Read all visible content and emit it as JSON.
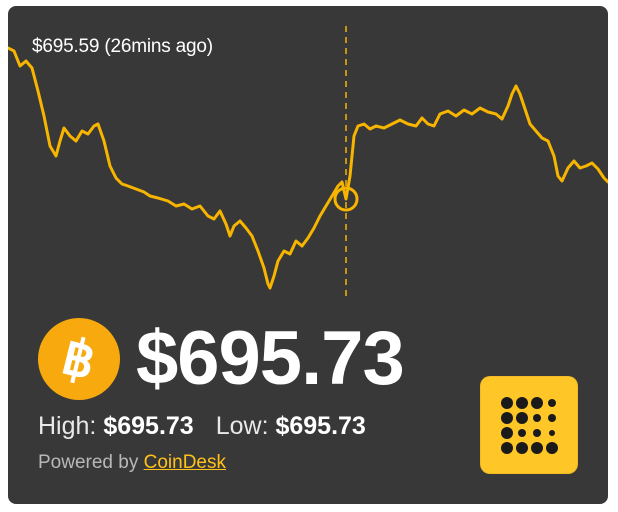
{
  "widget": {
    "hover_label": "$695.59 (26mins ago)",
    "price": "$695.73",
    "high_label": "High:",
    "high_value": "$695.73",
    "low_label": "Low:",
    "low_value": "$695.73",
    "powered_by": "Powered by",
    "provider_link": "CoinDesk",
    "coin_symbol": "฿",
    "colors": {
      "background": "#383838",
      "line": "#f7b500",
      "coin": "#f7a90e",
      "logo": "#ffc628",
      "link": "#ffc11a"
    },
    "icons": {
      "coin": "bitcoin-icon",
      "logo": "coindesk-logo-icon"
    }
  }
}
